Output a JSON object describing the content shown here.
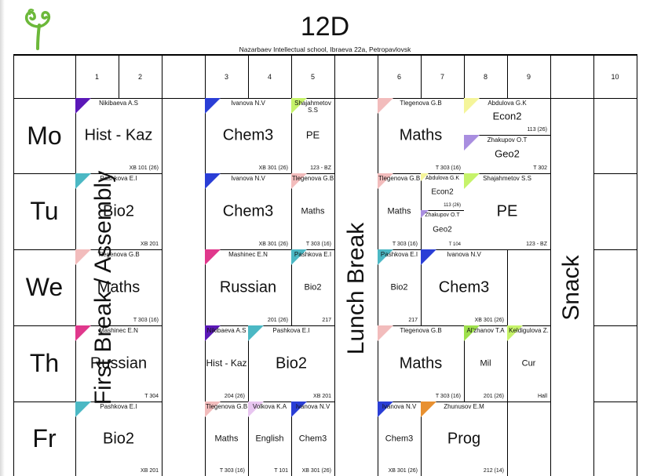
{
  "document": {
    "title": "12D",
    "subtitle": "Nazarbaev Intellectual school, Ibraeva 22a, Petropavlovsk"
  },
  "header": {
    "periods": [
      "1",
      "2",
      "3",
      "4",
      "5",
      "6",
      "7",
      "8",
      "9",
      "10"
    ]
  },
  "days": [
    "Mo",
    "Tu",
    "We",
    "Th",
    "Fr"
  ],
  "breaks": {
    "first": "First Break / Assembly",
    "lunch": "Lunch Break",
    "snack": "Snack"
  },
  "lessons": {
    "mo_1": {
      "teacher": "Nikibaeva A.S",
      "subject": "Hist - Kaz",
      "room": "XB 101 (26)",
      "color": "#5b18b8"
    },
    "mo_3": {
      "teacher": "Ivanova N.V",
      "subject": "Chem3",
      "room": "XB 301 (26)",
      "color": "#2a3ed6"
    },
    "mo_5": {
      "teacher": "Shajahmetov S.S",
      "subject": "PE",
      "room": "123 - BZ",
      "color": "#c6f36a"
    },
    "mo_6": {
      "teacher": "Tlegenova G.B",
      "subject": "Maths",
      "room": "T 303 (16)",
      "color": "#f2bcbc"
    },
    "mo_8a": {
      "teacher": "Abdulova G.K",
      "subject": "Econ2",
      "room": "113 (26)",
      "color": "#f5f59a"
    },
    "mo_8b": {
      "teacher": "Zhakupov O.T",
      "subject": "Geo2",
      "room": "T 302",
      "color": "#a98ee0"
    },
    "tu_1": {
      "teacher": "Pashkova E.I",
      "subject": "Bio2",
      "room": "XB 201",
      "color": "#4bb8c4"
    },
    "tu_3": {
      "teacher": "Ivanova N.V",
      "subject": "Chem3",
      "room": "XB 301 (26)",
      "color": "#2a3ed6"
    },
    "tu_5": {
      "teacher": "Tlegenova G.B",
      "subject": "Maths",
      "room": "T 303 (16)",
      "color": "#f2bcbc"
    },
    "tu_6": {
      "teacher": "Tlegenova G.B",
      "subject": "Maths",
      "room": "T 303 (16)",
      "color": "#f2bcbc"
    },
    "tu_7a": {
      "teacher": "Abdulova G.K",
      "subject": "Econ2",
      "room": "113 (26)",
      "color": "#f5f59a"
    },
    "tu_7b": {
      "teacher": "Zhakupov O.T",
      "subject": "Geo2",
      "room": "T 104",
      "color": "#a98ee0"
    },
    "tu_8": {
      "teacher": "Shajahmetov S.S",
      "subject": "PE",
      "room": "123 - BZ",
      "color": "#c6f36a"
    },
    "we_1": {
      "teacher": "Tlegenova G.B",
      "subject": "Maths",
      "room": "T 303 (16)",
      "color": "#f2bcbc"
    },
    "we_3": {
      "teacher": "Mashinec E.N",
      "subject": "Russian",
      "room": "201 (26)",
      "color": "#e0388c"
    },
    "we_5": {
      "teacher": "Pashkova E.I",
      "subject": "Bio2",
      "room": "217",
      "color": "#4bb8c4"
    },
    "we_6": {
      "teacher": "Pashkova E.I",
      "subject": "Bio2",
      "room": "217",
      "color": "#4bb8c4"
    },
    "we_7": {
      "teacher": "Ivanova N.V",
      "subject": "Chem3",
      "room": "XB 301 (26)",
      "color": "#2a3ed6"
    },
    "th_1": {
      "teacher": "Mashinec E.N",
      "subject": "Russian",
      "room": "T 304",
      "color": "#e0388c"
    },
    "th_3": {
      "teacher": "Nikibaeva A.S",
      "subject": "Hist - Kaz",
      "room": "204 (26)",
      "color": "#5b18b8"
    },
    "th_4": {
      "teacher": "Pashkova E.I",
      "subject": "Bio2",
      "room": "XB 201",
      "color": "#4bb8c4"
    },
    "th_6": {
      "teacher": "Tlegenova G.B",
      "subject": "Maths",
      "room": "T 303 (16)",
      "color": "#f2bcbc"
    },
    "th_8": {
      "teacher": "Al'zhanov T.A",
      "subject": "Mil",
      "room": "201 (26)",
      "color": "#9ee04c"
    },
    "th_9": {
      "teacher": "Keldigulova Z.",
      "subject": "Cur",
      "room": "Hall",
      "color": "#c6f36a"
    },
    "fr_1": {
      "teacher": "Pashkova E.I",
      "subject": "Bio2",
      "room": "XB 201",
      "color": "#4bb8c4"
    },
    "fr_3": {
      "teacher": "Tlegenova G.B",
      "subject": "Maths",
      "room": "T 303 (16)",
      "color": "#f2bcbc"
    },
    "fr_4": {
      "teacher": "Volkova K.A",
      "subject": "English",
      "room": "T 101",
      "color": "#e8c6f0"
    },
    "fr_5": {
      "teacher": "Ivanova N.V",
      "subject": "Chem3",
      "room": "XB 301 (26)",
      "color": "#2a3ed6"
    },
    "fr_6": {
      "teacher": "Ivanova N.V",
      "subject": "Chem3",
      "room": "XB 301 (26)",
      "color": "#2a3ed6"
    },
    "fr_7": {
      "teacher": "Zhunusov E.M",
      "subject": "Prog",
      "room": "212 (14)",
      "color": "#e89030"
    }
  }
}
